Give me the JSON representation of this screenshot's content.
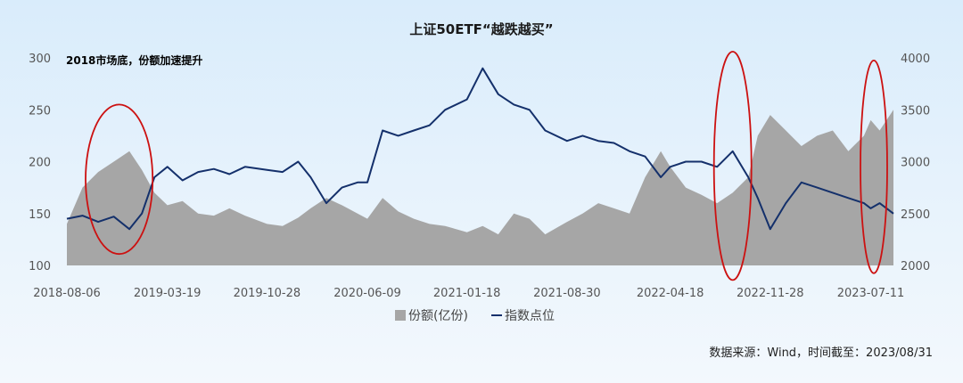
{
  "chart_data": {
    "type": "area+line",
    "title": "上证50ETF“越跌越买”",
    "annotation": "2018市场底，份额加速提升",
    "source": "数据来源：Wind，时间截至：2023/08/31",
    "x_tick_labels": [
      "2018-08-06",
      "2019-03-19",
      "2019-10-28",
      "2020-06-09",
      "2021-01-18",
      "2021-08-30",
      "2022-04-18",
      "2022-11-28",
      "2023-07-11"
    ],
    "x_range": [
      "2018-08-06",
      "2023-08-31"
    ],
    "y_left": {
      "ylim": [
        100,
        300
      ],
      "ticks": [
        100,
        150,
        200,
        250,
        300
      ]
    },
    "y_right": {
      "ylim": [
        2000,
        4000
      ],
      "ticks": [
        2000,
        2500,
        3000,
        3500,
        4000
      ]
    },
    "legend_placement": "bottom-center",
    "grid": false,
    "series": [
      {
        "name": "份额(亿份)",
        "axis": "left",
        "color": "#a6a6a6",
        "x": [
          "2018-08-06",
          "2018-09-10",
          "2018-10-15",
          "2018-11-19",
          "2018-12-24",
          "2019-01-21",
          "2019-02-18",
          "2019-03-19",
          "2019-04-22",
          "2019-05-27",
          "2019-07-01",
          "2019-08-05",
          "2019-09-09",
          "2019-10-28",
          "2019-12-02",
          "2020-01-06",
          "2020-02-03",
          "2020-03-09",
          "2020-04-13",
          "2020-05-18",
          "2020-06-09",
          "2020-07-13",
          "2020-08-17",
          "2020-09-21",
          "2020-10-26",
          "2020-11-30",
          "2021-01-18",
          "2021-02-22",
          "2021-03-29",
          "2021-05-03",
          "2021-06-07",
          "2021-07-12",
          "2021-08-30",
          "2021-10-04",
          "2021-11-08",
          "2021-12-13",
          "2022-01-17",
          "2022-02-21",
          "2022-03-28",
          "2022-04-18",
          "2022-05-23",
          "2022-06-27",
          "2022-08-01",
          "2022-09-05",
          "2022-10-10",
          "2022-10-31",
          "2022-11-28",
          "2023-01-02",
          "2023-02-06",
          "2023-03-13",
          "2023-04-17",
          "2023-05-22",
          "2023-06-26",
          "2023-07-11",
          "2023-07-31",
          "2023-08-31"
        ],
        "values": [
          140,
          175,
          190,
          200,
          210,
          192,
          170,
          158,
          162,
          150,
          148,
          155,
          148,
          140,
          138,
          146,
          155,
          165,
          158,
          150,
          145,
          165,
          152,
          145,
          140,
          138,
          132,
          138,
          130,
          150,
          145,
          130,
          142,
          150,
          160,
          155,
          150,
          185,
          210,
          195,
          175,
          168,
          160,
          170,
          185,
          225,
          245,
          230,
          215,
          225,
          230,
          210,
          225,
          240,
          230,
          250
        ]
      },
      {
        "name": "指数点位",
        "axis": "right",
        "color": "#14306b",
        "x": [
          "2018-08-06",
          "2018-09-10",
          "2018-10-15",
          "2018-11-19",
          "2018-12-24",
          "2019-01-21",
          "2019-02-18",
          "2019-03-19",
          "2019-04-22",
          "2019-05-27",
          "2019-07-01",
          "2019-08-05",
          "2019-09-09",
          "2019-10-28",
          "2019-12-02",
          "2020-01-06",
          "2020-02-03",
          "2020-03-09",
          "2020-04-13",
          "2020-05-18",
          "2020-06-09",
          "2020-07-13",
          "2020-08-17",
          "2020-09-21",
          "2020-10-26",
          "2020-11-30",
          "2021-01-18",
          "2021-02-22",
          "2021-03-29",
          "2021-05-03",
          "2021-06-07",
          "2021-07-12",
          "2021-08-30",
          "2021-10-04",
          "2021-11-08",
          "2021-12-13",
          "2022-01-17",
          "2022-02-21",
          "2022-03-28",
          "2022-04-18",
          "2022-05-23",
          "2022-06-27",
          "2022-08-01",
          "2022-09-05",
          "2022-10-10",
          "2022-10-31",
          "2022-11-28",
          "2023-01-02",
          "2023-02-06",
          "2023-03-13",
          "2023-04-17",
          "2023-05-22",
          "2023-06-26",
          "2023-07-11",
          "2023-07-31",
          "2023-08-31"
        ],
        "values": [
          2450,
          2480,
          2420,
          2470,
          2350,
          2500,
          2850,
          2950,
          2820,
          2900,
          2930,
          2880,
          2950,
          2920,
          2900,
          3000,
          2850,
          2600,
          2750,
          2800,
          2800,
          3300,
          3250,
          3300,
          3350,
          3500,
          3600,
          3900,
          3650,
          3550,
          3500,
          3300,
          3200,
          3250,
          3200,
          3180,
          3100,
          3050,
          2850,
          2950,
          3000,
          3000,
          2950,
          3100,
          2850,
          2650,
          2350,
          2600,
          2800,
          2750,
          2700,
          2650,
          2600,
          2550,
          2600,
          2500
        ]
      }
    ],
    "circles": [
      {
        "x_center": "2018-12-01",
        "y_center": 2830,
        "rx_days": 75,
        "ry": 1440,
        "color": "#cc1111"
      },
      {
        "x_center": "2022-09-05",
        "y_center": 2960,
        "rx_days": 42,
        "ry": 2200,
        "color": "#cc1111"
      },
      {
        "x_center": "2023-07-18",
        "y_center": 2950,
        "rx_days": 30,
        "ry": 2050,
        "color": "#cc1111"
      }
    ]
  }
}
